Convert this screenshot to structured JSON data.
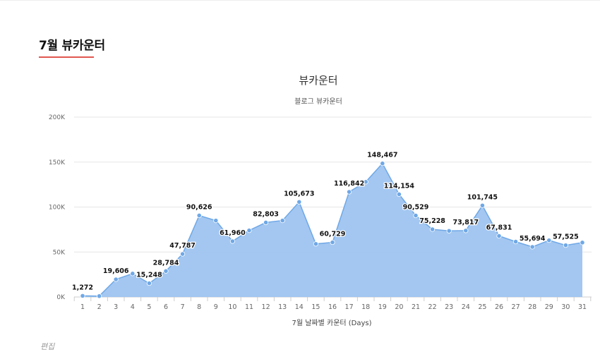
{
  "section": {
    "title": "7월 뷰카운터",
    "edit_label": "편집"
  },
  "colors": {
    "accent_underline": "#e0574f",
    "series_fill": "#9ec4f0",
    "series_line": "#6fa8e6",
    "point": "#6fa8e6",
    "grid": "#e6e6e6"
  },
  "chart_data": {
    "type": "area",
    "title": "뷰카운터",
    "subtitle": "블로그 뷰카운터",
    "xlabel": "7월 날짜별 카운터 (Days)",
    "ylabel": "",
    "ylim": [
      0,
      200000
    ],
    "yticks": [
      {
        "value": 0,
        "label": "0K"
      },
      {
        "value": 50000,
        "label": "50K"
      },
      {
        "value": 100000,
        "label": "100K"
      },
      {
        "value": 150000,
        "label": "150K"
      },
      {
        "value": 200000,
        "label": "200K"
      }
    ],
    "grid": true,
    "legend": "none",
    "categories": [
      "1",
      "2",
      "3",
      "4",
      "5",
      "6",
      "7",
      "8",
      "9",
      "10",
      "11",
      "12",
      "13",
      "14",
      "15",
      "16",
      "17",
      "18",
      "19",
      "20",
      "21",
      "22",
      "23",
      "24",
      "25",
      "26",
      "27",
      "28",
      "29",
      "30",
      "31"
    ],
    "series": [
      {
        "name": "뷰카운터",
        "values": [
          1272,
          1000,
          19606,
          26000,
          15248,
          28784,
          47787,
          90626,
          85000,
          61960,
          74000,
          82803,
          85000,
          105673,
          59000,
          60729,
          116842,
          128000,
          148467,
          114154,
          90529,
          75228,
          73500,
          73817,
          101745,
          67831,
          61500,
          55694,
          63000,
          57525,
          60500
        ],
        "labels": [
          "1,272",
          "",
          "19,606",
          "",
          "15,248",
          "28,784",
          "47,787",
          "90,626",
          "",
          "61,960",
          "",
          "82,803",
          "",
          "105,673",
          "",
          "60,729",
          "116,842",
          "",
          "148,467",
          "114,154",
          "90,529",
          "75,228",
          "",
          "73,817",
          "101,745",
          "67,831",
          "",
          "55,694",
          "",
          "57,525",
          ""
        ]
      }
    ]
  }
}
